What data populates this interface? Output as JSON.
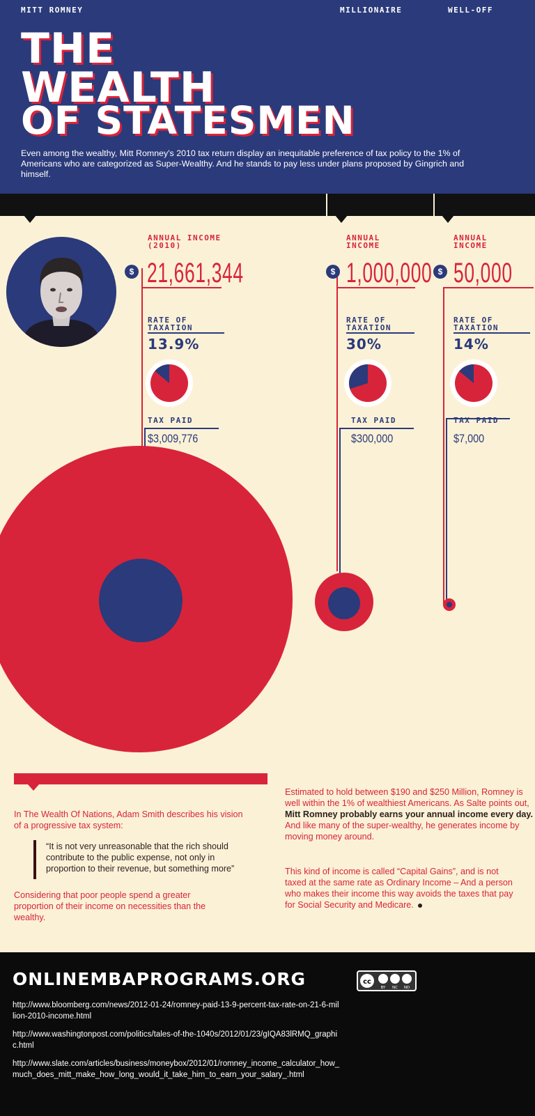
{
  "header": {
    "title_lines": [
      "THE",
      "WEALTH",
      "OF STATESMEN"
    ],
    "intro": "Even among the wealthy, Mitt Romney's 2010 tax return display an inequitable preference of tax policy to the 1% of Americans who are categorized as Super-Wealthy. And he stands to pay less under plans proposed by Gingrich and himself."
  },
  "columns": [
    {
      "heading": "MITT ROMNEY",
      "income_label": "ANNUAL INCOME (2010)",
      "income": "21,661,344",
      "rate_label": "RATE OF TAXATION",
      "rate": "13.9%",
      "rate_value": 13.9,
      "paid_label": "TAX PAID",
      "paid": "$3,009,776"
    },
    {
      "heading": "MILLIONAIRE",
      "income_label": "ANNUAL INCOME",
      "income": "1,000,000",
      "rate_label": "RATE OF TAXATION",
      "rate": "30%",
      "rate_value": 30,
      "paid_label": "TAX PAID",
      "paid": "$300,000"
    },
    {
      "heading": "WELL-OFF",
      "income_label": "ANNUAL INCOME",
      "income": "50,000",
      "rate_label": "RATE OF TAXATION",
      "rate": "14%",
      "rate_value": 14,
      "paid_label": "TAX PAID",
      "paid": "$7,000"
    }
  ],
  "currency_symbol": "$",
  "colors": {
    "navy": "#2b3a7a",
    "red": "#d8243a",
    "cream": "#fbf1d6",
    "black": "#111111"
  },
  "left_text": {
    "intro": "In The Wealth Of Nations, Adam Smith describes his vision of a progressive tax system:",
    "quote": "“It is not very unreasonable that the rich should contribute to the public expense, not only in proportion to their revenue, but something more”",
    "outro": "Considering that poor people spend a greater proportion of their income on necessities than the wealthy."
  },
  "right_text": {
    "p1_a": "Estimated to hold between $190 and $250 Million, Romney is well within the 1% of wealthiest Americans. As Salte points out,",
    "p1_bold": "Mitt Romney probably earns your annual income every day.",
    "p1_b": "And like many of the super-wealthy, he generates income by moving money around.",
    "p2": "This kind of income is called “Capital Gains”, and is not taxed at the same rate as Ordinary Income – And a person who makes their income this way avoids the taxes that pay for Social Security and Medicare."
  },
  "footer": {
    "site": "ONLINEMBAPROGRAMS.ORG",
    "license_icons": [
      "cc-icon",
      "by-icon",
      "nc-icon",
      "nd-icon"
    ],
    "license_labels": [
      "BY",
      "NC",
      "ND"
    ],
    "license_cc": "cc",
    "links": [
      "http://www.bloomberg.com/news/2012-01-24/romney-paid-13-9-percent-tax-rate-on-21-6-million-2010-income.html",
      "http://www.washingtonpost.com/politics/tales-of-the-1040s/2012/01/23/gIQA83lRMQ_graphic.html",
      "http://www.slate.com/articles/business/moneybox/2012/01/romney_income_calculator_how_much_does_mitt_make_how_long_would_it_take_him_to_earn_your_salary_.html"
    ]
  }
}
